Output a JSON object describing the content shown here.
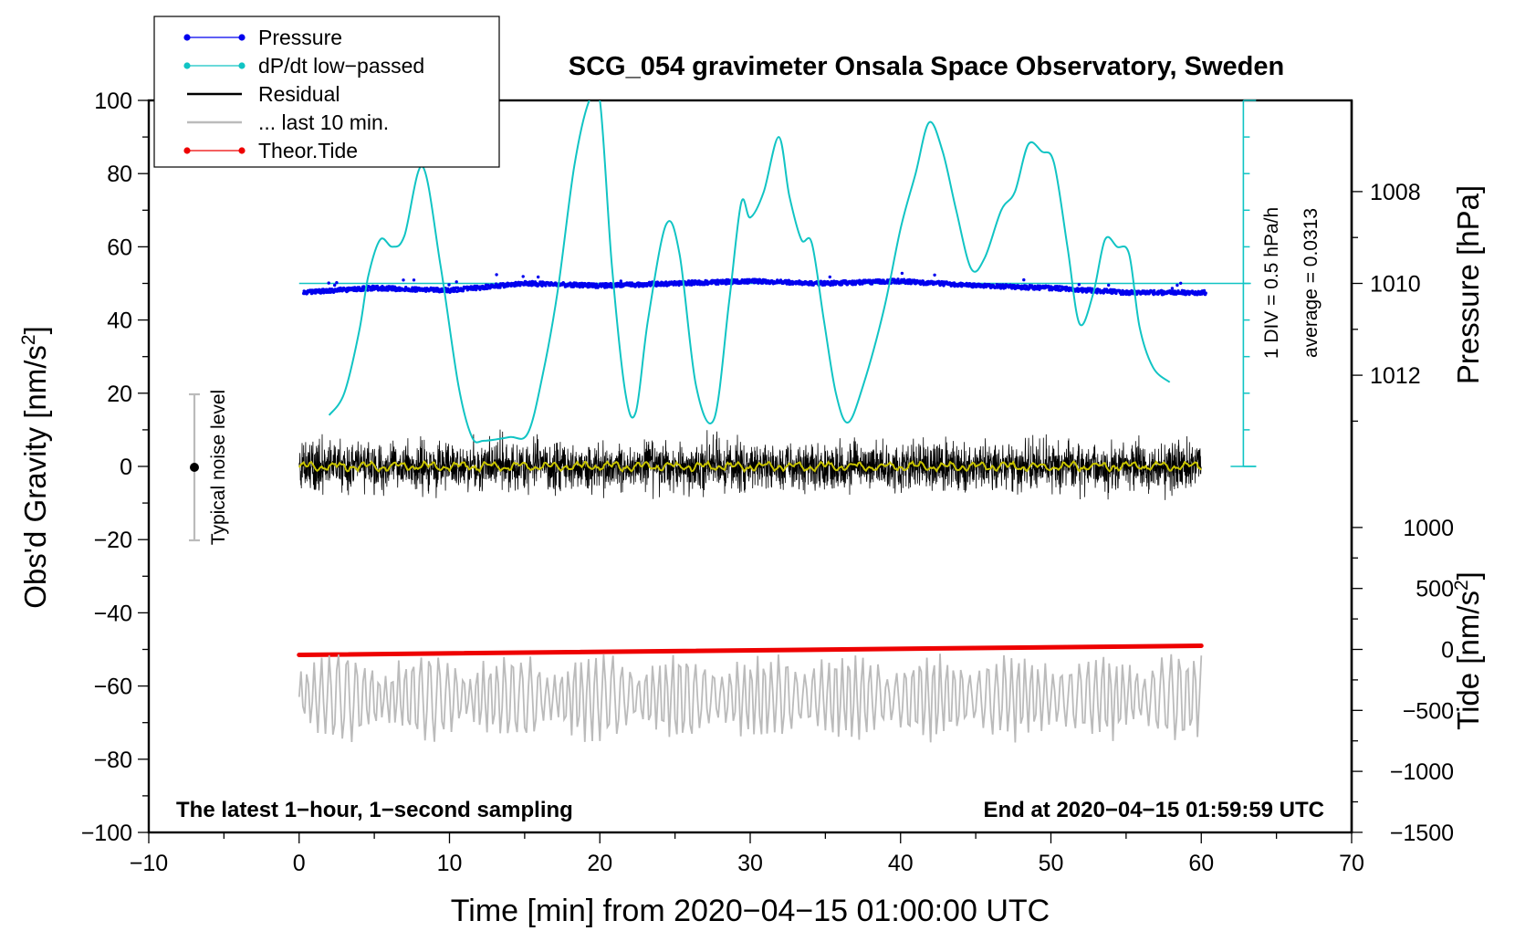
{
  "chart_data": {
    "type": "line",
    "title": "SCG_054 gravimeter Onsala Space Observatory, Sweden",
    "xlabel": "Time [min] from 2020−04−15 01:00:00 UTC",
    "ylabel_left_main": "Obs'd Gravity [nm/s",
    "ylabel_left_sup": "2",
    "ylabel_left_close": "]",
    "ylabel_pressure": "Pressure [hPa]",
    "ylabel_tide_main": "Tide [nm/s",
    "ylabel_tide_sup": "2",
    "ylabel_tide_close": "]",
    "xlim": [
      -10,
      70
    ],
    "ylim": [
      -100,
      100
    ],
    "x_ticks": [
      "−10",
      "0",
      "10",
      "20",
      "30",
      "40",
      "50",
      "60",
      "70"
    ],
    "y_ticks": [
      "−100",
      "−80",
      "−60",
      "−40",
      "−20",
      "0",
      "20",
      "40",
      "60",
      "80",
      "100"
    ],
    "pressure_ticks": [
      "1008",
      "1010",
      "1012"
    ],
    "tide_ticks": [
      "−1500",
      "−1000",
      "−500",
      "0",
      "500",
      "1000"
    ],
    "legend": [
      {
        "label": "Pressure",
        "color": "#0000ee",
        "marker": true
      },
      {
        "label": "dP/dt low−passed",
        "color": "#11c4c4",
        "marker": true
      },
      {
        "label": "Residual",
        "color": "#000000",
        "marker": false
      },
      {
        "label": "... last 10 min.",
        "color": "#bbbbbb",
        "marker": false
      },
      {
        "label": "Theor.Tide",
        "color": "#ee0000",
        "marker": true
      }
    ],
    "noise_label": "Typical noise level",
    "noise_range": [
      -20,
      20
    ],
    "dpdt_scale_label": "1 DIV = 0.5 hPa/h",
    "dpdt_average_label": "average = 0.0313",
    "note_left": "The latest 1−hour, 1−second sampling",
    "note_right": "End at 2020−04−15 01:59:59 UTC",
    "series": [
      {
        "name": "dP/dt low-passed",
        "color": "#11c4c4",
        "unit": "nm/s2 axis (display)",
        "x": [
          2,
          3,
          4,
          4.6,
          5.4,
          6.2,
          7.0,
          8.2,
          9.4,
          10.6,
          11.5,
          12.3,
          14.0,
          15.2,
          16.2,
          17.2,
          18.3,
          19.3,
          20.0,
          20.8,
          21.7,
          22.4,
          23.2,
          24.4,
          25.3,
          26.4,
          27.6,
          28.6,
          29.4,
          30.0,
          30.9,
          31.9,
          32.6,
          33.4,
          34.1,
          34.9,
          35.7,
          36.5,
          37.5,
          38.9,
          40.0,
          41.0,
          41.9,
          42.8,
          43.7,
          44.7,
          45.6,
          46.7,
          47.6,
          48.5,
          49.4,
          50.2,
          51.1,
          51.9,
          52.8,
          53.6,
          54.4,
          55.2,
          55.9,
          56.8,
          57.9
        ],
        "values": [
          14,
          20,
          37,
          52,
          62,
          60,
          63,
          82,
          55,
          22,
          8,
          7,
          8,
          9,
          25,
          48,
          82,
          100,
          100,
          55,
          20,
          15,
          40,
          66,
          58,
          22,
          13,
          45,
          72,
          68,
          75,
          90,
          74,
          62,
          61,
          40,
          20,
          12,
          22,
          43,
          65,
          80,
          94,
          86,
          70,
          54,
          57,
          70,
          75,
          88,
          86,
          83,
          60,
          39,
          47,
          62,
          60,
          58,
          38,
          27,
          23
        ]
      },
      {
        "name": "Pressure",
        "color": "#0000ee",
        "unit": "hPa",
        "x": [
          0,
          5,
          10,
          15,
          20,
          25,
          30,
          35,
          40,
          45,
          50,
          55,
          60
        ],
        "values": [
          1010.2,
          1010.1,
          1010.15,
          1010.0,
          1010.05,
          1010.0,
          1009.95,
          1010.0,
          1009.95,
          1010.05,
          1010.1,
          1010.2,
          1010.2
        ]
      },
      {
        "name": "Residual",
        "color": "#000000",
        "unit": "nm/s2",
        "x_range": [
          0,
          60
        ],
        "envelope": [
          -15,
          15
        ],
        "smoothed_color": "#c9c400"
      },
      {
        "name": "... last 10 min.",
        "color": "#bbbbbb",
        "unit": "nm/s2 axis (display)",
        "x_range": [
          0,
          60
        ],
        "center": -63,
        "envelope": [
          -78,
          -46
        ]
      },
      {
        "name": "Theor.Tide",
        "color": "#ee0000",
        "unit": "nm/s2 axis (display)",
        "x": [
          0,
          60
        ],
        "values": [
          -51.5,
          -49
        ]
      }
    ]
  }
}
